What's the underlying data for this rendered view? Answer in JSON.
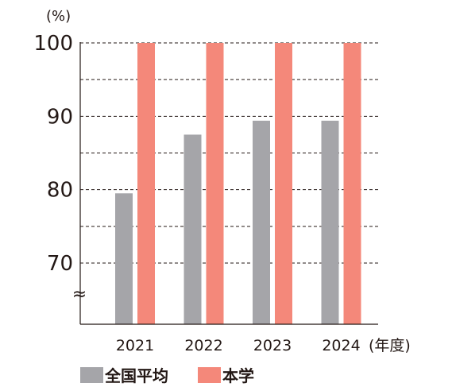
{
  "chart_data": {
    "type": "bar",
    "y_unit_label": "(%)",
    "x_unit_label": "(年度)",
    "categories": [
      "2021",
      "2022",
      "2023",
      "2024"
    ],
    "series": [
      {
        "name": "全国平均",
        "color": "#a5a5a9",
        "values": [
          79.5,
          87.5,
          89.4,
          89.4
        ]
      },
      {
        "name": "本学",
        "color": "#f4887a",
        "values": [
          100,
          100,
          100,
          100
        ]
      }
    ],
    "ylim": [
      70,
      100
    ],
    "yticks": [
      70,
      80,
      90,
      100
    ],
    "y_axis_break": true,
    "grid": "dashed horizontal at every 5",
    "legend_position": "bottom-left"
  }
}
